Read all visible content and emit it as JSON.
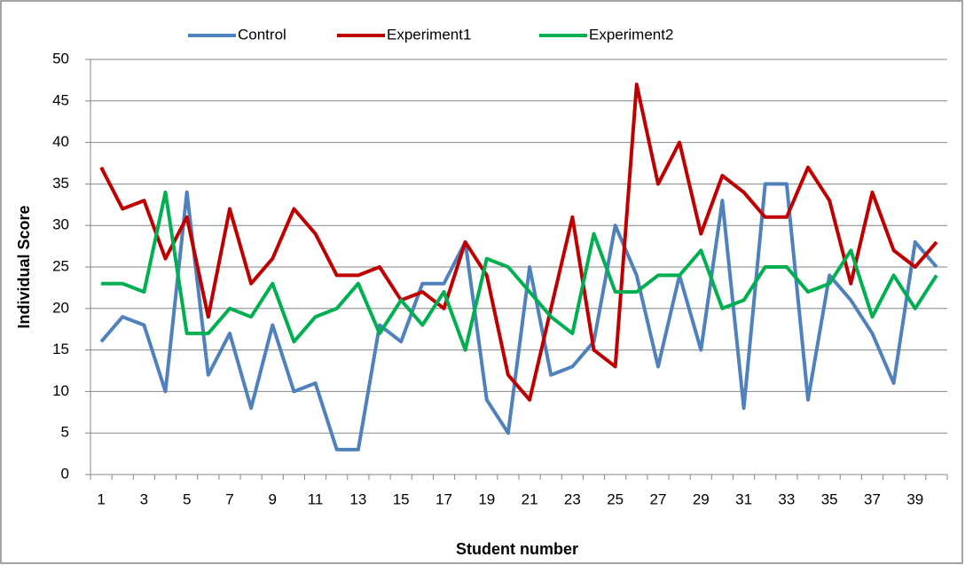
{
  "chart_data": {
    "type": "line",
    "y_label": "Individual  Score",
    "x_label": "Student number",
    "categories": [
      1,
      null,
      3,
      null,
      5,
      null,
      7,
      null,
      9,
      null,
      11,
      null,
      13,
      null,
      15,
      null,
      17,
      null,
      19,
      null,
      21,
      null,
      23,
      null,
      25,
      null,
      27,
      null,
      29,
      null,
      31,
      null,
      33,
      null,
      35,
      null,
      37,
      null,
      39,
      null
    ],
    "series": [
      {
        "name": "Control",
        "color": "#4F81BD",
        "values": [
          16,
          19,
          18,
          10,
          34,
          12,
          17,
          8,
          18,
          10,
          11,
          3,
          3,
          18,
          16,
          23,
          23,
          28,
          9,
          5,
          25,
          12,
          13,
          16,
          30,
          24,
          13,
          24,
          15,
          33,
          8,
          35,
          35,
          9,
          24,
          21,
          17,
          11,
          28,
          25
        ]
      },
      {
        "name": "Experiment1",
        "color": "#C00000",
        "values": [
          37,
          32,
          33,
          26,
          31,
          19,
          32,
          23,
          26,
          32,
          29,
          24,
          24,
          25,
          21,
          22,
          20,
          28,
          24,
          12,
          9,
          20,
          31,
          15,
          13,
          47,
          35,
          40,
          29,
          36,
          34,
          31,
          31,
          37,
          33,
          23,
          34,
          27,
          25,
          28
        ]
      },
      {
        "name": "Experiment2",
        "color": "#00B050",
        "values": [
          23,
          23,
          22,
          34,
          17,
          17,
          20,
          19,
          23,
          16,
          19,
          20,
          23,
          17,
          21,
          18,
          22,
          15,
          26,
          25,
          22,
          19,
          17,
          29,
          22,
          22,
          24,
          24,
          27,
          20,
          21,
          25,
          25,
          22,
          23,
          27,
          19,
          24,
          20,
          24
        ]
      }
    ],
    "ylim": [
      0,
      50
    ],
    "yticks": [
      0,
      5,
      10,
      15,
      20,
      25,
      30,
      35,
      40,
      45,
      50
    ],
    "grid": true,
    "legend": "top"
  }
}
